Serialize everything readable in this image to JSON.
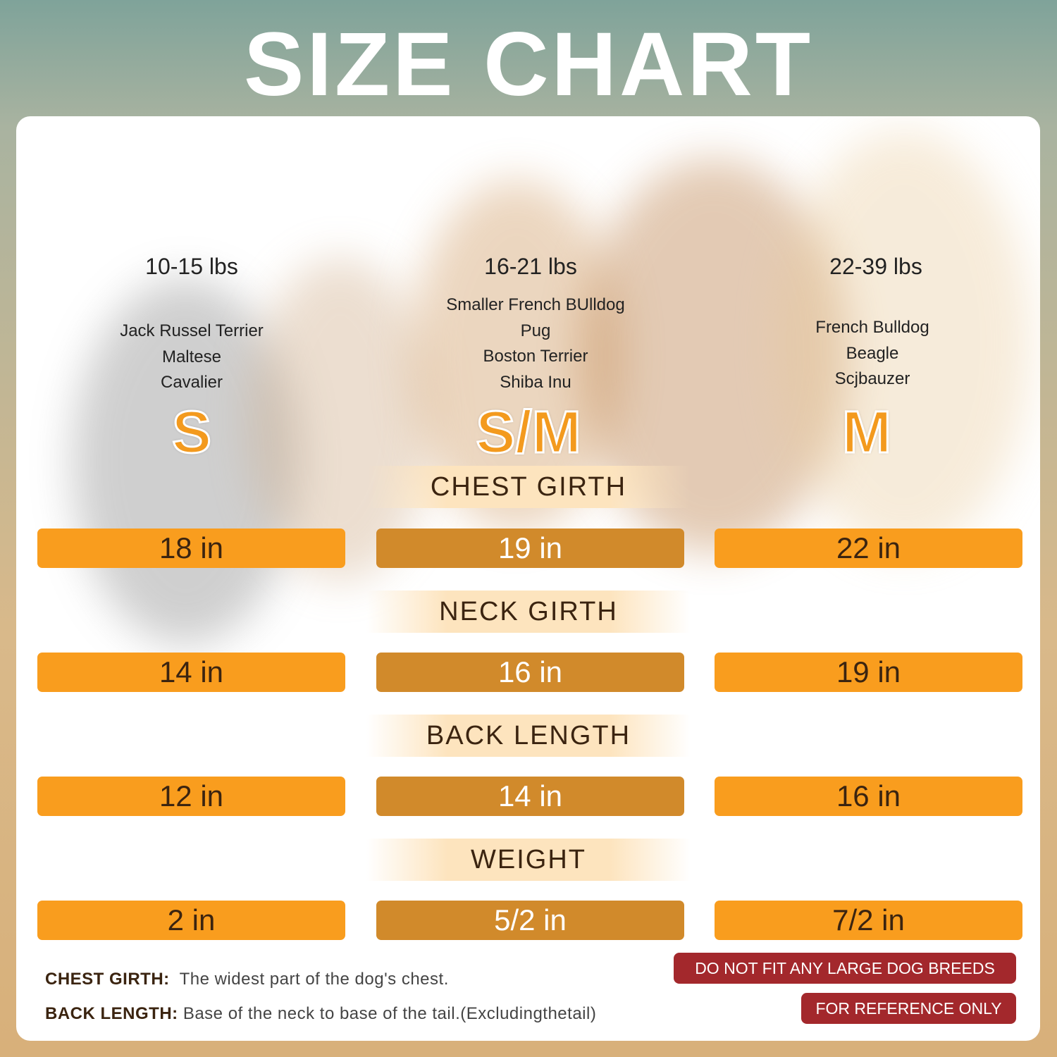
{
  "title": "SIZE CHART",
  "colors": {
    "accent_light": "#f99d1e",
    "accent_dark": "#d18a2b",
    "warning": "#a3282c",
    "size_letter": "#f39a1e"
  },
  "columns": [
    {
      "size": "S",
      "weight": "10-15 lbs",
      "breeds": [
        "Jack Russel Terrier",
        "Maltese",
        "Cavalier"
      ]
    },
    {
      "size": "S/M",
      "weight": "16-21 lbs",
      "breeds": [
        "Smaller French BUlldog",
        "Pug",
        "Boston Terrier",
        "Shiba Inu"
      ]
    },
    {
      "size": "M",
      "weight": "22-39 lbs",
      "breeds": [
        "French Bulldog",
        "Beagle",
        "Scjbauzer"
      ]
    }
  ],
  "rows": [
    {
      "label": "CHEST GIRTH",
      "values": [
        "18 in",
        "19 in",
        "22 in"
      ]
    },
    {
      "label": "NECK GIRTH",
      "values": [
        "14 in",
        "16 in",
        "19 in"
      ]
    },
    {
      "label": "BACK LENGTH",
      "values": [
        "12 in",
        "14 in",
        "16 in"
      ]
    },
    {
      "label": "WEIGHT",
      "values": [
        "2 in",
        "5/2 in",
        "7/2 in"
      ]
    }
  ],
  "notes": [
    {
      "term": "CHEST GIRTH:",
      "text": "The widest part of the dog's chest."
    },
    {
      "term": "BACK LENGTH:",
      "text": "Base of the neck to base of the tail.(Excludingthetail)"
    }
  ],
  "badges": [
    "DO NOT FIT ANY LARGE DOG BREEDS",
    "FOR REFERENCE ONLY"
  ]
}
